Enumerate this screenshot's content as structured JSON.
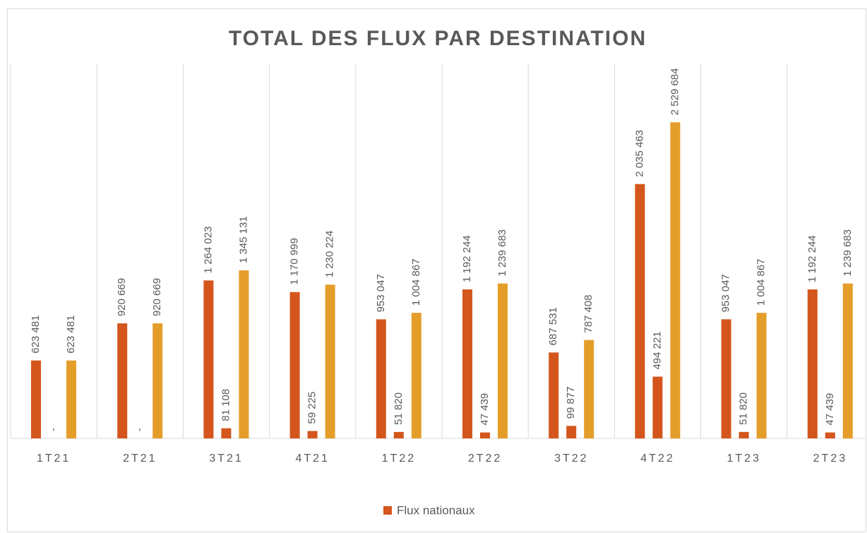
{
  "chart_data": {
    "type": "bar",
    "title": "TOTAL DES FLUX PAR DESTINATION",
    "categories": [
      "1T21",
      "2T21",
      "3T21",
      "4T21",
      "1T22",
      "2T22",
      "3T22",
      "4T22",
      "1T23",
      "2T23"
    ],
    "series": [
      {
        "name": "Flux nationaux",
        "color": "#d4561c",
        "values": [
          623481,
          920669,
          1264023,
          1170999,
          953047,
          1192244,
          687531,
          2035463,
          953047,
          1192244
        ],
        "value_labels": [
          "623 481",
          "920 669",
          "1 264 023",
          "1 170 999",
          "953 047",
          "1 192 244",
          "687 531",
          "2 035 463",
          "953 047",
          "1 192 244"
        ]
      },
      {
        "color": "#d4561c",
        "values": [
          0,
          0,
          81108,
          59225,
          51820,
          47439,
          99877,
          494221,
          51820,
          47439
        ],
        "value_labels": [
          "-",
          "-",
          "81 108",
          "59 225",
          "51 820",
          "47 439",
          "99 877",
          "494 221",
          "51 820",
          "47 439"
        ]
      },
      {
        "color": "#e59d2a",
        "values": [
          623481,
          920669,
          1345131,
          1230224,
          1004867,
          1239683,
          787408,
          2529684,
          1004867,
          1239683
        ],
        "value_labels": [
          "623 481",
          "920 669",
          "1 345 131",
          "1 230 224",
          "1 004 867",
          "1 239 683",
          "787 408",
          "2 529 684",
          "1 004 867",
          "1 239 683"
        ]
      }
    ],
    "ylim": [
      0,
      3000000
    ],
    "legend": "bottom"
  }
}
